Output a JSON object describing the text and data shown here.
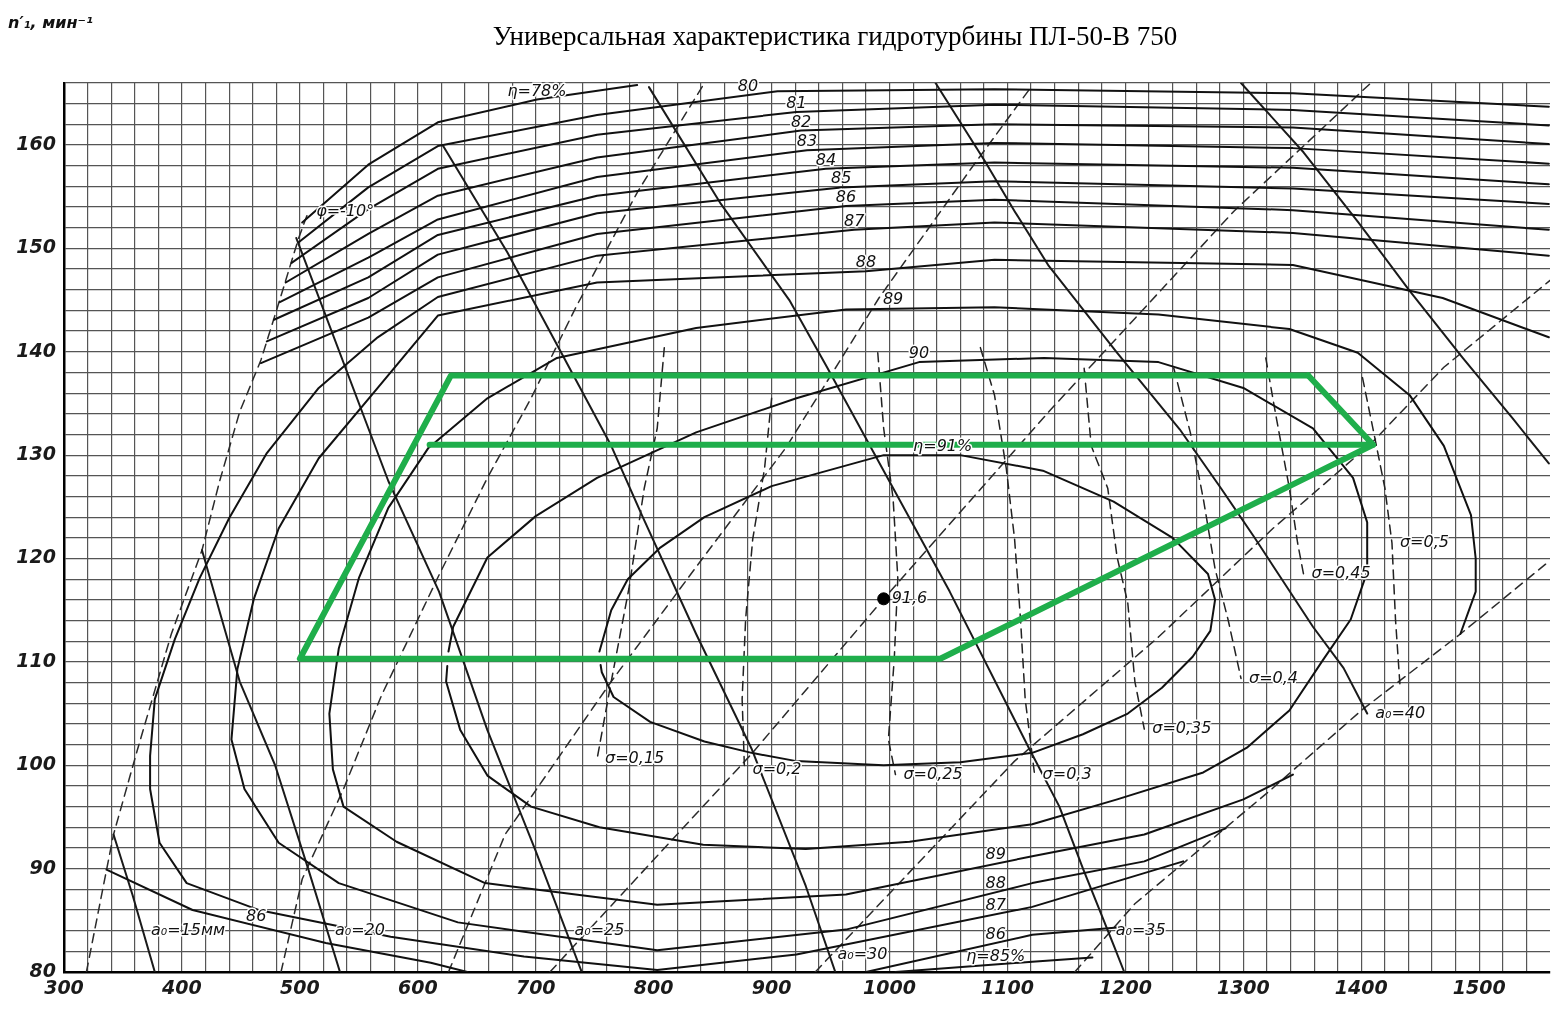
{
  "chart_data": {
    "type": "line",
    "title": "Универсальная характеристика гидротурбины ПЛ-50-В 750",
    "ylabel": "n′₁, мин⁻¹",
    "xlim": [
      300,
      1560
    ],
    "ylim": [
      80,
      166
    ],
    "xticks": [
      300,
      {
        "value": 320,
        "label": null
      },
      {
        "value": 340,
        "label": null
      },
      {
        "value": 360,
        "label": null
      },
      {
        "value": 380,
        "label": null
      },
      400,
      {
        "value": 420,
        "label": null
      },
      {
        "value": 440,
        "label": null
      },
      {
        "value": 460,
        "label": null
      },
      {
        "value": 480,
        "label": null
      },
      500,
      {
        "value": 520,
        "label": null
      },
      {
        "value": 540,
        "label": null
      },
      {
        "value": 560,
        "label": null
      },
      {
        "value": 580,
        "label": null
      },
      600,
      {
        "value": 620,
        "label": null
      },
      {
        "value": 640,
        "label": null
      },
      {
        "value": 660,
        "label": null
      },
      {
        "value": 680,
        "label": null
      },
      700,
      {
        "value": 720,
        "label": null
      },
      {
        "value": 740,
        "label": null
      },
      {
        "value": 760,
        "label": null
      },
      {
        "value": 780,
        "label": null
      },
      800,
      {
        "value": 820,
        "label": null
      },
      {
        "value": 840,
        "label": null
      },
      {
        "value": 860,
        "label": null
      },
      {
        "value": 880,
        "label": null
      },
      900,
      {
        "value": 920,
        "label": null
      },
      {
        "value": 940,
        "label": null
      },
      {
        "value": 960,
        "label": null
      },
      {
        "value": 980,
        "label": null
      },
      1000,
      {
        "value": 1020,
        "label": null
      },
      {
        "value": 1040,
        "label": null
      },
      {
        "value": 1060,
        "label": null
      },
      {
        "value": 1080,
        "label": null
      },
      1100,
      {
        "value": 1120,
        "label": null
      },
      {
        "value": 1140,
        "label": null
      },
      {
        "value": 1160,
        "label": null
      },
      {
        "value": 1180,
        "label": null
      },
      1200,
      {
        "value": 1220,
        "label": null
      },
      {
        "value": 1240,
        "label": null
      },
      {
        "value": 1260,
        "label": null
      },
      {
        "value": 1280,
        "label": null
      },
      1300,
      {
        "value": 1320,
        "label": null
      },
      {
        "value": 1340,
        "label": null
      },
      {
        "value": 1360,
        "label": null
      },
      {
        "value": 1380,
        "label": null
      },
      1400,
      {
        "value": 1420,
        "label": null
      },
      {
        "value": 1440,
        "label": null
      },
      {
        "value": 1460,
        "label": null
      },
      {
        "value": 1480,
        "label": null
      },
      1500,
      {
        "value": 1520,
        "label": null
      },
      {
        "value": 1540,
        "label": null
      }
    ],
    "yticks": [
      80,
      {
        "value": 82,
        "label": null
      },
      {
        "value": 84,
        "label": null
      },
      {
        "value": 86,
        "label": null
      },
      {
        "value": 88,
        "label": null
      },
      90,
      {
        "value": 92,
        "label": null
      },
      {
        "value": 94,
        "label": null
      },
      {
        "value": 96,
        "label": null
      },
      {
        "value": 98,
        "label": null
      },
      100,
      {
        "value": 102,
        "label": null
      },
      {
        "value": 104,
        "label": null
      },
      {
        "value": 106,
        "label": null
      },
      {
        "value": 108,
        "label": null
      },
      110,
      {
        "value": 112,
        "label": null
      },
      {
        "value": 114,
        "label": null
      },
      {
        "value": 116,
        "label": null
      },
      {
        "value": 118,
        "label": null
      },
      120,
      {
        "value": 122,
        "label": null
      },
      {
        "value": 124,
        "label": null
      },
      {
        "value": 126,
        "label": null
      },
      {
        "value": 128,
        "label": null
      },
      130,
      {
        "value": 132,
        "label": null
      },
      {
        "value": 134,
        "label": null
      },
      {
        "value": 136,
        "label": null
      },
      {
        "value": 138,
        "label": null
      },
      140,
      {
        "value": 142,
        "label": null
      },
      {
        "value": 144,
        "label": null
      },
      {
        "value": 146,
        "label": null
      },
      {
        "value": 148,
        "label": null
      },
      150,
      {
        "value": 152,
        "label": null
      },
      {
        "value": 154,
        "label": null
      },
      {
        "value": 156,
        "label": null
      },
      {
        "value": 158,
        "label": null
      },
      160,
      {
        "value": 162,
        "label": null
      },
      {
        "value": 164,
        "label": null
      },
      {
        "value": 166,
        "label": null
      }
    ],
    "grid": true,
    "marker": "none",
    "series": [
      {
        "color": "#2b2b2b",
        "line_style": "dashed",
        "x": [
          319,
          342,
          362,
          391,
          417,
          432,
          449,
          467,
          481,
          499,
          507
        ],
        "values": [
          80,
          93.3,
          101.4,
          112.7,
          120.8,
          127.5,
          134.2,
          139.2,
          144.3,
          151,
          153.5
        ]
      },
      {
        "color": "#2b2b2b",
        "line_style": "dashed",
        "x": [
          484,
          502,
          537,
          569,
          618,
          659,
          696,
          734,
          786,
          842
        ],
        "values": [
          80,
          89,
          97.7,
          106.7,
          118.4,
          127.8,
          135.5,
          144.3,
          155.4,
          165.8
        ]
      },
      {
        "color": "#2b2b2b",
        "line_style": "dashed",
        "x": [
          626,
          674,
          764,
          842,
          912,
          991,
          1069,
          1118
        ],
        "values": [
          80,
          93.3,
          108.1,
          120.1,
          130.7,
          145.2,
          157.7,
          165.3
        ]
      },
      {
        "color": "#2b2b2b",
        "line_style": "dashed",
        "x": [
          712,
          883,
          995,
          1135,
          1292,
          1408
        ],
        "values": [
          80,
          101.1,
          116.1,
          134.2,
          153.6,
          166
        ]
      },
      {
        "color": "#2b2b2b",
        "line_style": "dashed",
        "x": [
          937,
          1106,
          1228,
          1325,
          1409,
          1470,
          1560
        ],
        "values": [
          80,
          100.4,
          112.4,
          122.9,
          131.2,
          138.5,
          146.9
        ]
      },
      {
        "color": "#2b2b2b",
        "line_style": "dashed",
        "x": [
          1157,
          1208,
          1321,
          1400,
          1484,
          1560
        ],
        "values": [
          80,
          86.6,
          97.4,
          105.3,
          112.7,
          119.8
        ]
      },
      {
        "color": "#1a1a1a",
        "line_style": "solid",
        "x": [
          342,
          358,
          377
        ],
        "values": [
          93.3,
          87.5,
          80
        ]
      },
      {
        "color": "#1a1a1a",
        "line_style": "solid",
        "x": [
          417,
          449,
          479,
          507,
          534
        ],
        "values": [
          120.8,
          108.1,
          100,
          90,
          80
        ]
      },
      {
        "color": "#1a1a1a",
        "line_style": "solid",
        "x": [
          497,
          575,
          618,
          659,
          700,
          739
        ],
        "values": [
          151,
          127.5,
          116.8,
          103.4,
          91.7,
          80
        ]
      },
      {
        "color": "#1a1a1a",
        "line_style": "solid",
        "x": [
          621,
          676,
          717,
          764,
          790,
          836,
          883,
          929,
          954
        ],
        "values": [
          160,
          149.6,
          140.9,
          130.9,
          124.2,
          112.7,
          101.6,
          88.3,
          80
        ]
      },
      {
        "color": "#1a1a1a",
        "line_style": "solid",
        "x": [
          796,
          857,
          915,
          947,
          1051,
          1118,
          1144,
          1164,
          1190,
          1199
        ],
        "values": [
          165.6,
          154.3,
          145,
          138.5,
          116.8,
          101.7,
          96,
          90,
          82.6,
          80
        ]
      },
      {
        "color": "#1a1a1a",
        "line_style": "solid",
        "x": [
          1039,
          1081,
          1106,
          1135,
          1193,
          1246,
          1281,
          1309,
          1359,
          1385,
          1405
        ],
        "values": [
          166,
          158.4,
          153.6,
          148.3,
          139.9,
          132.5,
          126.8,
          122.1,
          113.4,
          109.4,
          105
        ]
      },
      {
        "color": "#1a1a1a",
        "line_style": "solid",
        "x": [
          1298,
          1351,
          1397,
          1441,
          1486,
          1528,
          1559
        ],
        "values": [
          166,
          159.3,
          152.6,
          145.9,
          139.4,
          133.6,
          129.2
        ]
      },
      {
        "color": "#222222",
        "line_style": "dashed",
        "x": [
          809,
          803,
          792,
          779,
          764,
          752
        ],
        "values": [
          140.4,
          132.6,
          126.8,
          117.1,
          108.1,
          100.6
        ]
      },
      {
        "color": "#222222",
        "line_style": "dashed",
        "x": [
          900,
          894,
          884,
          878,
          875,
          877
        ],
        "values": [
          135.5,
          128.7,
          121.9,
          114.2,
          106.4,
          99.6
        ]
      },
      {
        "color": "#222222",
        "line_style": "dashed",
        "x": [
          990,
          995,
          1003,
          1007,
          1004,
          999,
          1005
        ],
        "values": [
          139.9,
          132.6,
          125.8,
          118.1,
          110.3,
          102.5,
          99.1
        ]
      },
      {
        "color": "#222222",
        "line_style": "dashed",
        "x": [
          1077,
          1089,
          1099,
          1106,
          1111,
          1115,
          1123
        ],
        "values": [
          140.4,
          135.8,
          128.7,
          121.9,
          114.2,
          106.4,
          99.1
        ]
      },
      {
        "color": "#222222",
        "line_style": "dashed",
        "x": [
          1165,
          1171,
          1185,
          1193,
          1202,
          1208,
          1216
        ],
        "values": [
          138.4,
          130.9,
          126.8,
          120.1,
          115.7,
          108.1,
          103.5
        ]
      },
      {
        "color": "#222222",
        "line_style": "dashed",
        "x": [
          1241,
          1255,
          1266,
          1276,
          1287,
          1298
        ],
        "values": [
          138.4,
          132.2,
          125.8,
          119,
          114.1,
          108.4
        ]
      },
      {
        "color": "#222222",
        "line_style": "dashed",
        "x": [
          1319,
          1327,
          1339,
          1346,
          1351
        ],
        "values": [
          139.4,
          134.2,
          126.8,
          121.5,
          118.5
        ]
      },
      {
        "color": "#222222",
        "line_style": "dashed",
        "x": [
          1401,
          1410,
          1420,
          1426,
          1429,
          1433
        ],
        "values": [
          137.5,
          132.5,
          126.8,
          121.5,
          114.1,
          107.4
        ]
      },
      {
        "color": "#111111",
        "line_style": "solid",
        "x": [
          502,
          558,
          617,
          701,
          786
        ],
        "values": [
          152.5,
          158.1,
          162.2,
          164.4,
          165.8
        ]
      },
      {
        "color": "#111111",
        "line_style": "solid",
        "x": [
          499,
          558,
          617,
          752,
          905,
          1089,
          1342,
          1559
        ],
        "values": [
          150.6,
          155.9,
          159.9,
          162.9,
          165.2,
          165.4,
          165,
          163.7
        ]
      },
      {
        "color": "#111111",
        "line_style": "solid",
        "x": [
          493,
          558,
          617,
          752,
          921,
          1089,
          1342,
          1559
        ],
        "values": [
          148.6,
          153.8,
          157.7,
          161,
          163.2,
          163.9,
          163.4,
          161.9
        ]
      },
      {
        "color": "#111111",
        "line_style": "solid",
        "x": [
          488,
          558,
          617,
          752,
          925,
          1089,
          1342,
          1559
        ],
        "values": [
          146.7,
          151.4,
          155.1,
          158.8,
          161.4,
          162,
          161.7,
          160.1
        ]
      },
      {
        "color": "#111111",
        "line_style": "solid",
        "x": [
          483,
          558,
          617,
          752,
          930,
          1089,
          1342,
          1559
        ],
        "values": [
          144.8,
          149.1,
          152.8,
          156.9,
          159.5,
          160.2,
          159.7,
          158.2
        ]
      },
      {
        "color": "#111111",
        "line_style": "solid",
        "x": [
          478,
          558,
          617,
          752,
          946,
          1089,
          1342,
          1559
        ],
        "values": [
          143.1,
          147.2,
          151.3,
          155.1,
          157.7,
          158.3,
          157.8,
          156.2
        ]
      },
      {
        "color": "#111111",
        "line_style": "solid",
        "x": [
          472,
          558,
          617,
          752,
          959,
          1089,
          1342,
          1559
        ],
        "values": [
          141,
          145.2,
          149.4,
          153.4,
          155.9,
          156.5,
          155.8,
          154.3
        ]
      },
      {
        "color": "#111111",
        "line_style": "solid",
        "x": [
          1005,
          1121,
          1172
        ],
        "values": [
          80,
          81,
          81.4
        ]
      },
      {
        "color": "#111111",
        "line_style": "solid",
        "x": [
          467,
          558,
          617,
          752,
          963,
          1089,
          1342,
          1559
        ],
        "values": [
          138.9,
          143.3,
          147.2,
          151.4,
          154.1,
          154.7,
          153.7,
          151.8
        ]
      },
      {
        "color": "#111111",
        "line_style": "solid",
        "x": [
          336,
          409,
          522,
          611,
          642,
          800,
          980,
          1121,
          1193
        ],
        "values": [
          89.9,
          86,
          82.8,
          80.9,
          80,
          null,
          80,
          83.6,
          84.3
        ]
      },
      {
        "color": "#111111",
        "line_style": "solid",
        "x": [
          1249,
          1121,
          921,
          803,
          690,
          577,
          465,
          404,
          381,
          373,
          373,
          377,
          394,
          415,
          440,
          472,
          516,
          566,
          617,
          752,
          970,
          1089,
          1342,
          1559
        ],
        "values": [
          90.7,
          86.3,
          81.7,
          80.2,
          81.5,
          83.4,
          86,
          88.6,
          92.5,
          97.7,
          100.9,
          106.4,
          112.2,
          118.1,
          123.9,
          130.2,
          136.5,
          141.4,
          145.3,
          149.3,
          151.8,
          152.5,
          151.5,
          149.3
        ]
      },
      {
        "color": "#111111",
        "line_style": "solid",
        "x": [
          1285,
          1216,
          1121,
          963,
          803,
          634,
          533,
          482,
          453,
          442,
          447,
          461,
          482,
          516,
          566,
          617,
          752,
          980,
          1089,
          1342,
          1469,
          1559
        ],
        "values": [
          93.9,
          90.7,
          88.6,
          84.1,
          82.1,
          84.8,
          88.6,
          92.5,
          97.7,
          102.5,
          109.3,
          116.1,
          122.9,
          129.7,
          136.5,
          143.5,
          146.7,
          147.8,
          148.9,
          148.4,
          145.2,
          141.4
        ]
      },
      {
        "color": "#111111",
        "line_style": "solid",
        "x": [
          1342,
          1300,
          1216,
          1121,
          963,
          803,
          657,
          582,
          537,
          528,
          525,
          533,
          550,
          575,
          609,
          659,
          718,
          836,
          963,
          1089,
          1228,
          1339,
          1397,
          1441,
          1470,
          1493,
          1497,
          1497,
          1484
        ],
        "values": [
          99.1,
          96.7,
          93.3,
          91.2,
          87.5,
          86.5,
          88.6,
          92.6,
          96,
          99.6,
          105,
          111.3,
          118.1,
          124.9,
          130.7,
          135.5,
          139.4,
          142.3,
          144.1,
          144.3,
          143.6,
          142.2,
          139.9,
          135.8,
          130.9,
          124.2,
          120,
          116.8,
          112.7
        ]
      },
      {
        "color": "#111111",
        "line_style": "solid",
        "x": [
          626,
          630,
          659,
          700,
          752,
          836,
          921,
          1025,
          1131,
          1228,
          1300,
          1359,
          1393,
          1405,
          1405,
          1391,
          1367,
          1339,
          1303,
          1266,
          1193,
          1121,
          1017,
          929,
          842,
          754,
          696,
          659,
          636,
          624,
          625
        ],
        "values": [
          111,
          113.4,
          120.1,
          124.1,
          127.8,
          132.2,
          135.5,
          139,
          139.4,
          139,
          136.5,
          132.6,
          127.8,
          123.5,
          118.7,
          114.1,
          110.1,
          105.3,
          101.7,
          99.3,
          96.7,
          94.3,
          92.6,
          91.9,
          92.3,
          94,
          96,
          99,
          103.4,
          108.1,
          109.6
        ]
      },
      {
        "color": "#111111",
        "line_style": "solid",
        "x": [
          754,
          764,
          778,
          805,
          843,
          900,
          995,
          1060,
          1130,
          1190,
          1240,
          1270,
          1276,
          1272,
          1257,
          1231,
          1202,
          1164,
          1121,
          1060,
          995,
          921,
          883,
          843,
          797,
          766,
          756,
          755
        ],
        "values": [
          111,
          115,
          118,
          121,
          124,
          127,
          130,
          130,
          128.5,
          125.5,
          122,
          118.5,
          116,
          113,
          110.5,
          107.5,
          105,
          103,
          101.2,
          100.3,
          100,
          100.4,
          101.2,
          102.3,
          104.2,
          106.6,
          109,
          109.7
        ]
      },
      {
        "color": "#1fae4b",
        "line_style": "solid",
        "x": [
          1355,
          628,
          500,
          1043,
          1410
        ],
        "values": [
          137.7,
          137.7,
          110.3,
          110.3,
          131
        ]
      },
      {
        "color": "#1fae4b",
        "line_style": "solid",
        "x": [
          610,
          1410,
          1355
        ],
        "values": [
          131,
          131,
          137.7
        ]
      },
      {
        "type": "scatter",
        "color": "#000000",
        "marker": "circle",
        "x": [
          995
        ],
        "values": [
          116.1
        ]
      }
    ],
    "annotations": [
      {
        "text": "η=78%",
        "x": 701,
        "y": 164.4
      },
      {
        "text": "80",
        "x": 880,
        "y": 164.8
      },
      {
        "text": "81",
        "x": 921,
        "y": 163.2
      },
      {
        "text": "82",
        "x": 925,
        "y": 161.4
      },
      {
        "text": "83",
        "x": 930,
        "y": 159.5
      },
      {
        "text": "84",
        "x": 946,
        "y": 157.7
      },
      {
        "text": "85",
        "x": 959,
        "y": 155.9
      },
      {
        "text": "86",
        "x": 963,
        "y": 154.1
      },
      {
        "text": "87",
        "x": 970,
        "y": 151.8
      },
      {
        "text": "88",
        "x": 980,
        "y": 147.8
      },
      {
        "text": "89",
        "x": 1003,
        "y": 144.2
      },
      {
        "text": "90",
        "x": 1025,
        "y": 139
      },
      {
        "text": "η=91%",
        "x": 1045,
        "y": 130
      },
      {
        "text": "91,6",
        "x": 995,
        "y": 116.1
      },
      {
        "text": "φ=-10°",
        "x": 507,
        "y": 153.5
      },
      {
        "text": "σ=0,15",
        "x": 752,
        "y": 100.6
      },
      {
        "text": "σ=0,2",
        "x": 877,
        "y": 99.6
      },
      {
        "text": "σ=0,25",
        "x": 1005,
        "y": 99.1
      },
      {
        "text": "σ=0,3",
        "x": 1123,
        "y": 99.1
      },
      {
        "text": "σ=0,35",
        "x": 1216,
        "y": 103.5
      },
      {
        "text": "σ=0,4",
        "x": 1298,
        "y": 108.4
      },
      {
        "text": "σ=0,45",
        "x": 1351,
        "y": 118.5
      },
      {
        "text": "σ=0,5",
        "x": 1426,
        "y": 121.5
      },
      {
        "text": "a₀=15мм",
        "x": 367,
        "y": 84
      },
      {
        "text": "86",
        "x": 463,
        "y": 84.5
      },
      {
        "text": "a₀=20",
        "x": 523,
        "y": 84
      },
      {
        "text": "a₀=25",
        "x": 726,
        "y": 84
      },
      {
        "text": "a₀=30",
        "x": 949,
        "y": 81.7
      },
      {
        "text": "a₀=35",
        "x": 1185,
        "y": 84
      },
      {
        "text": "a₀=40",
        "x": 1405,
        "y": 105
      },
      {
        "text": "89",
        "x": 1090,
        "y": 90.5
      },
      {
        "text": "88",
        "x": 1090,
        "y": 87.7
      },
      {
        "text": "87",
        "x": 1090,
        "y": 85.6
      },
      {
        "text": "86",
        "x": 1090,
        "y": 82.8
      },
      {
        "text": "η=85%",
        "x": 1090,
        "y": 80.7
      }
    ]
  }
}
